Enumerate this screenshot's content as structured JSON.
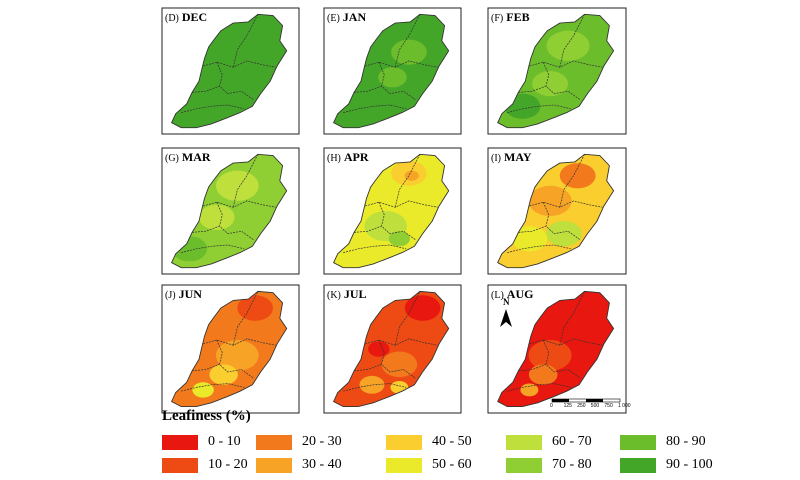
{
  "panels": [
    {
      "letter": "(D)",
      "month": "DEC",
      "base": "90 - 100",
      "blobs": []
    },
    {
      "letter": "(E)",
      "month": "JAN",
      "base": "90 - 100",
      "blobs": [
        {
          "class": "80 - 90",
          "u": 0.62,
          "v": 0.35,
          "s": 0.1
        },
        {
          "class": "80 - 90",
          "u": 0.5,
          "v": 0.55,
          "s": 0.08
        }
      ]
    },
    {
      "letter": "(F)",
      "month": "FEB",
      "base": "80 - 90",
      "blobs": [
        {
          "class": "70 - 80",
          "u": 0.58,
          "v": 0.3,
          "s": 0.12
        },
        {
          "class": "70 - 80",
          "u": 0.45,
          "v": 0.6,
          "s": 0.1
        },
        {
          "class": "90 - 100",
          "u": 0.25,
          "v": 0.78,
          "s": 0.1
        }
      ]
    },
    {
      "letter": "(G)",
      "month": "MAR",
      "base": "70 - 80",
      "blobs": [
        {
          "class": "60 - 70",
          "u": 0.55,
          "v": 0.3,
          "s": 0.12
        },
        {
          "class": "60 - 70",
          "u": 0.4,
          "v": 0.55,
          "s": 0.1
        },
        {
          "class": "80 - 90",
          "u": 0.2,
          "v": 0.8,
          "s": 0.1
        }
      ]
    },
    {
      "letter": "(H)",
      "month": "APR",
      "base": "50 - 60",
      "blobs": [
        {
          "class": "40 - 50",
          "u": 0.62,
          "v": 0.2,
          "s": 0.1
        },
        {
          "class": "30 - 40",
          "u": 0.64,
          "v": 0.22,
          "s": 0.04
        },
        {
          "class": "60 - 70",
          "u": 0.45,
          "v": 0.62,
          "s": 0.12
        },
        {
          "class": "70 - 80",
          "u": 0.55,
          "v": 0.72,
          "s": 0.06
        }
      ]
    },
    {
      "letter": "(I)",
      "month": "MAY",
      "base": "40 - 50",
      "blobs": [
        {
          "class": "20 - 30",
          "u": 0.65,
          "v": 0.22,
          "s": 0.1
        },
        {
          "class": "30 - 40",
          "u": 0.45,
          "v": 0.42,
          "s": 0.12
        },
        {
          "class": "60 - 70",
          "u": 0.55,
          "v": 0.68,
          "s": 0.1
        },
        {
          "class": "50 - 60",
          "u": 0.3,
          "v": 0.72,
          "s": 0.1
        }
      ]
    },
    {
      "letter": "(J)",
      "month": "JUN",
      "base": "20 - 30",
      "blobs": [
        {
          "class": "10 - 20",
          "u": 0.68,
          "v": 0.18,
          "s": 0.1
        },
        {
          "class": "30 - 40",
          "u": 0.55,
          "v": 0.55,
          "s": 0.12
        },
        {
          "class": "40 - 50",
          "u": 0.45,
          "v": 0.7,
          "s": 0.08
        },
        {
          "class": "50 - 60",
          "u": 0.3,
          "v": 0.82,
          "s": 0.06
        }
      ]
    },
    {
      "letter": "(K)",
      "month": "JUL",
      "base": "10 - 20",
      "blobs": [
        {
          "class": "0 - 10",
          "u": 0.72,
          "v": 0.18,
          "s": 0.1
        },
        {
          "class": "0 - 10",
          "u": 0.4,
          "v": 0.5,
          "s": 0.06
        },
        {
          "class": "20 - 30",
          "u": 0.55,
          "v": 0.62,
          "s": 0.1
        },
        {
          "class": "30 - 40",
          "u": 0.35,
          "v": 0.78,
          "s": 0.07
        },
        {
          "class": "40 - 50",
          "u": 0.55,
          "v": 0.8,
          "s": 0.05
        }
      ]
    },
    {
      "letter": "(L)",
      "month": "AUG",
      "base": "0 - 10",
      "blobs": [
        {
          "class": "10 - 20",
          "u": 0.45,
          "v": 0.55,
          "s": 0.12
        },
        {
          "class": "20 - 30",
          "u": 0.4,
          "v": 0.7,
          "s": 0.08
        },
        {
          "class": "30 - 40",
          "u": 0.3,
          "v": 0.82,
          "s": 0.05
        }
      ]
    }
  ],
  "north_arrow_label": "N",
  "scale_bar_labels": [
    "0",
    "125",
    "250",
    "500",
    "750",
    "1 000"
  ],
  "legend": {
    "title": "Leafiness (%)",
    "items": [
      {
        "label": "0 - 10",
        "color": "#e8170f"
      },
      {
        "label": "10 - 20",
        "color": "#ee4a14"
      },
      {
        "label": "20 - 30",
        "color": "#f27a1d"
      },
      {
        "label": "30 - 40",
        "color": "#f7a326"
      },
      {
        "label": "40 - 50",
        "color": "#f9ce2e"
      },
      {
        "label": "50 - 60",
        "color": "#eaea2a"
      },
      {
        "label": "60 - 70",
        "color": "#bfe03c"
      },
      {
        "label": "70 - 80",
        "color": "#8fcf33"
      },
      {
        "label": "80 - 90",
        "color": "#6cbd2c"
      },
      {
        "label": "90 - 100",
        "color": "#44a629"
      }
    ]
  }
}
